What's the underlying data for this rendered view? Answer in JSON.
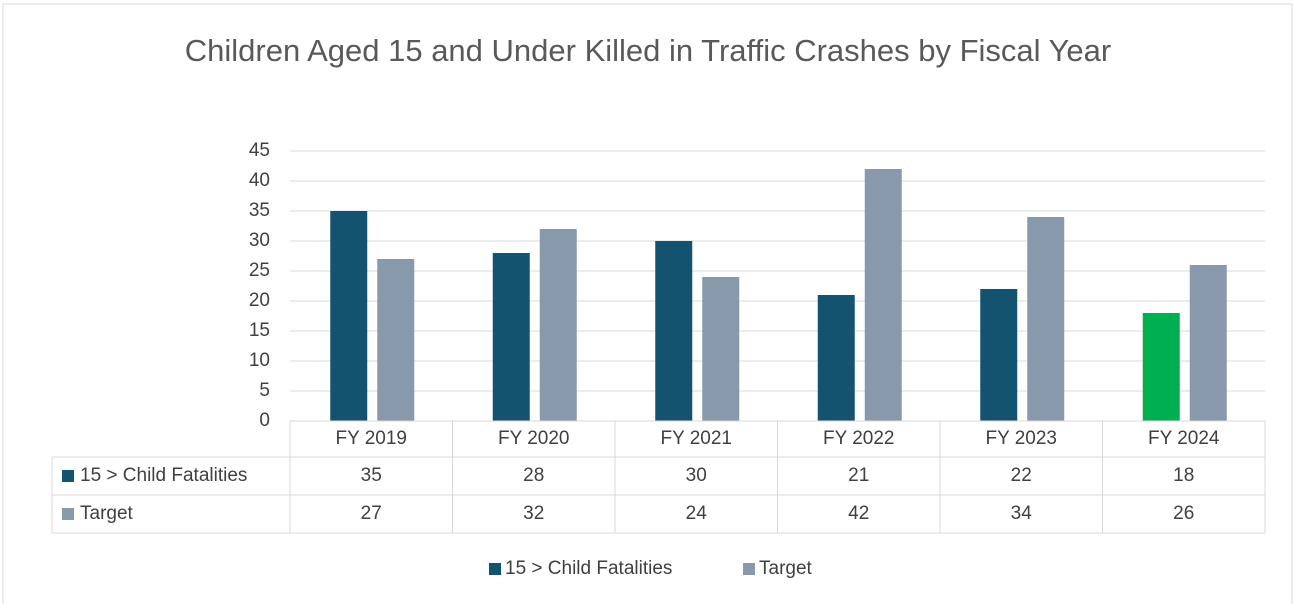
{
  "chart_data": {
    "type": "bar",
    "title": "Children Aged 15 and Under Killed in Traffic Crashes by Fiscal Year",
    "categories": [
      "FY 2019",
      "FY 2020",
      "FY 2021",
      "FY 2022",
      "FY 2023",
      "FY 2024"
    ],
    "series": [
      {
        "name": "15 > Child Fatalities",
        "color": "#145370",
        "colors": [
          "#145370",
          "#145370",
          "#145370",
          "#145370",
          "#145370",
          "#00B050"
        ],
        "values": [
          35,
          28,
          30,
          21,
          22,
          18
        ]
      },
      {
        "name": "Target",
        "color": "#8799AA",
        "values": [
          27,
          32,
          24,
          42,
          34,
          26
        ]
      }
    ],
    "ylim": [
      0,
      45
    ],
    "yticks": [
      0,
      5,
      10,
      15,
      20,
      25,
      30,
      35,
      40,
      45
    ],
    "grid": true,
    "legend": "bottom",
    "data_table": true
  }
}
